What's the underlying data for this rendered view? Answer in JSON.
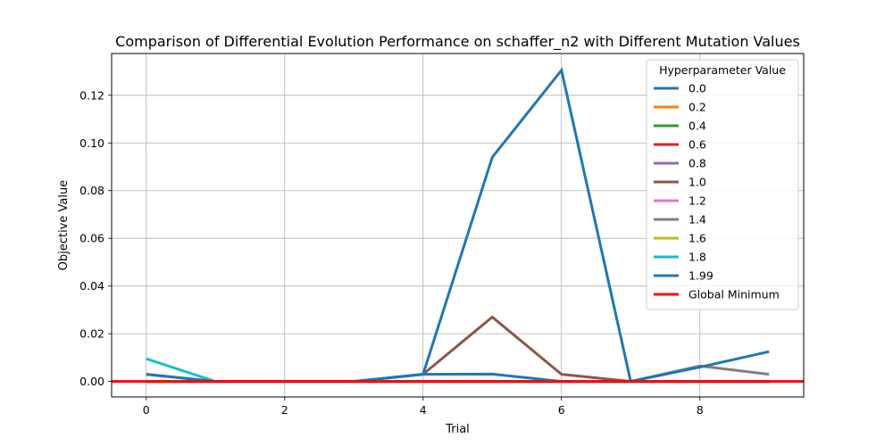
{
  "chart_data": {
    "type": "line",
    "title": "Comparison of Differential Evolution Performance on schaffer_n2 with Different Mutation Values",
    "xlabel": "Trial",
    "ylabel": "Objective Value",
    "xlim": [
      -0.5,
      9.5
    ],
    "ylim": [
      -0.0065,
      0.1375
    ],
    "xticks": [
      0,
      2,
      4,
      6,
      8
    ],
    "xtick_labels": [
      "0",
      "2",
      "4",
      "6",
      "8"
    ],
    "yticks": [
      0.0,
      0.02,
      0.04,
      0.06,
      0.08,
      0.1,
      0.12
    ],
    "ytick_labels": [
      "0.00",
      "0.02",
      "0.04",
      "0.06",
      "0.08",
      "0.10",
      "0.12"
    ],
    "grid": true,
    "legend": {
      "title": "Hyperparameter Value",
      "placement": "top-right"
    },
    "x": [
      0,
      1,
      2,
      3,
      4,
      5,
      6,
      7,
      8,
      9
    ],
    "series": [
      {
        "name": "0.0",
        "color": "#1f77b4",
        "values": [
          0.003,
          0,
          0,
          0,
          0.003,
          0.0031,
          0,
          0,
          0,
          0
        ]
      },
      {
        "name": "0.2",
        "color": "#ff7f0e",
        "values": [
          0,
          0,
          0,
          0,
          0,
          0,
          0,
          0,
          0,
          0
        ]
      },
      {
        "name": "0.4",
        "color": "#2ca02c",
        "values": [
          0,
          0,
          0,
          0,
          0,
          0,
          0,
          0,
          0,
          0
        ]
      },
      {
        "name": "0.6",
        "color": "#d62728",
        "values": [
          0,
          0,
          0,
          0,
          0,
          0,
          0,
          0,
          0,
          0
        ]
      },
      {
        "name": "0.8",
        "color": "#9467bd",
        "values": [
          0,
          0,
          0,
          0,
          0,
          0,
          0,
          0,
          0,
          0
        ]
      },
      {
        "name": "1.0",
        "color": "#8c564b",
        "values": [
          0,
          0,
          0,
          0,
          0.003,
          0.027,
          0.003,
          0,
          0,
          0
        ]
      },
      {
        "name": "1.2",
        "color": "#e377c2",
        "values": [
          0,
          0,
          0,
          0,
          0,
          0,
          0,
          0,
          0,
          0
        ]
      },
      {
        "name": "1.4",
        "color": "#7f7f7f",
        "values": [
          0,
          0,
          0,
          0,
          0,
          0,
          0,
          0,
          0.0065,
          0.003
        ]
      },
      {
        "name": "1.6",
        "color": "#bcbd22",
        "values": [
          0,
          0,
          0,
          0,
          0,
          0,
          0,
          0,
          0,
          0
        ]
      },
      {
        "name": "1.8",
        "color": "#17becf",
        "values": [
          0.0095,
          0,
          0,
          0,
          0,
          0,
          0,
          0,
          0,
          0
        ]
      },
      {
        "name": "1.99",
        "color": "#1f77b4",
        "values": [
          0.003,
          0,
          0,
          0,
          0.003,
          0.094,
          0.1305,
          0,
          0.006,
          0.0125
        ]
      }
    ],
    "reference_line": {
      "name": "Global Minimum",
      "color": "#ff0000",
      "value": 0
    }
  }
}
